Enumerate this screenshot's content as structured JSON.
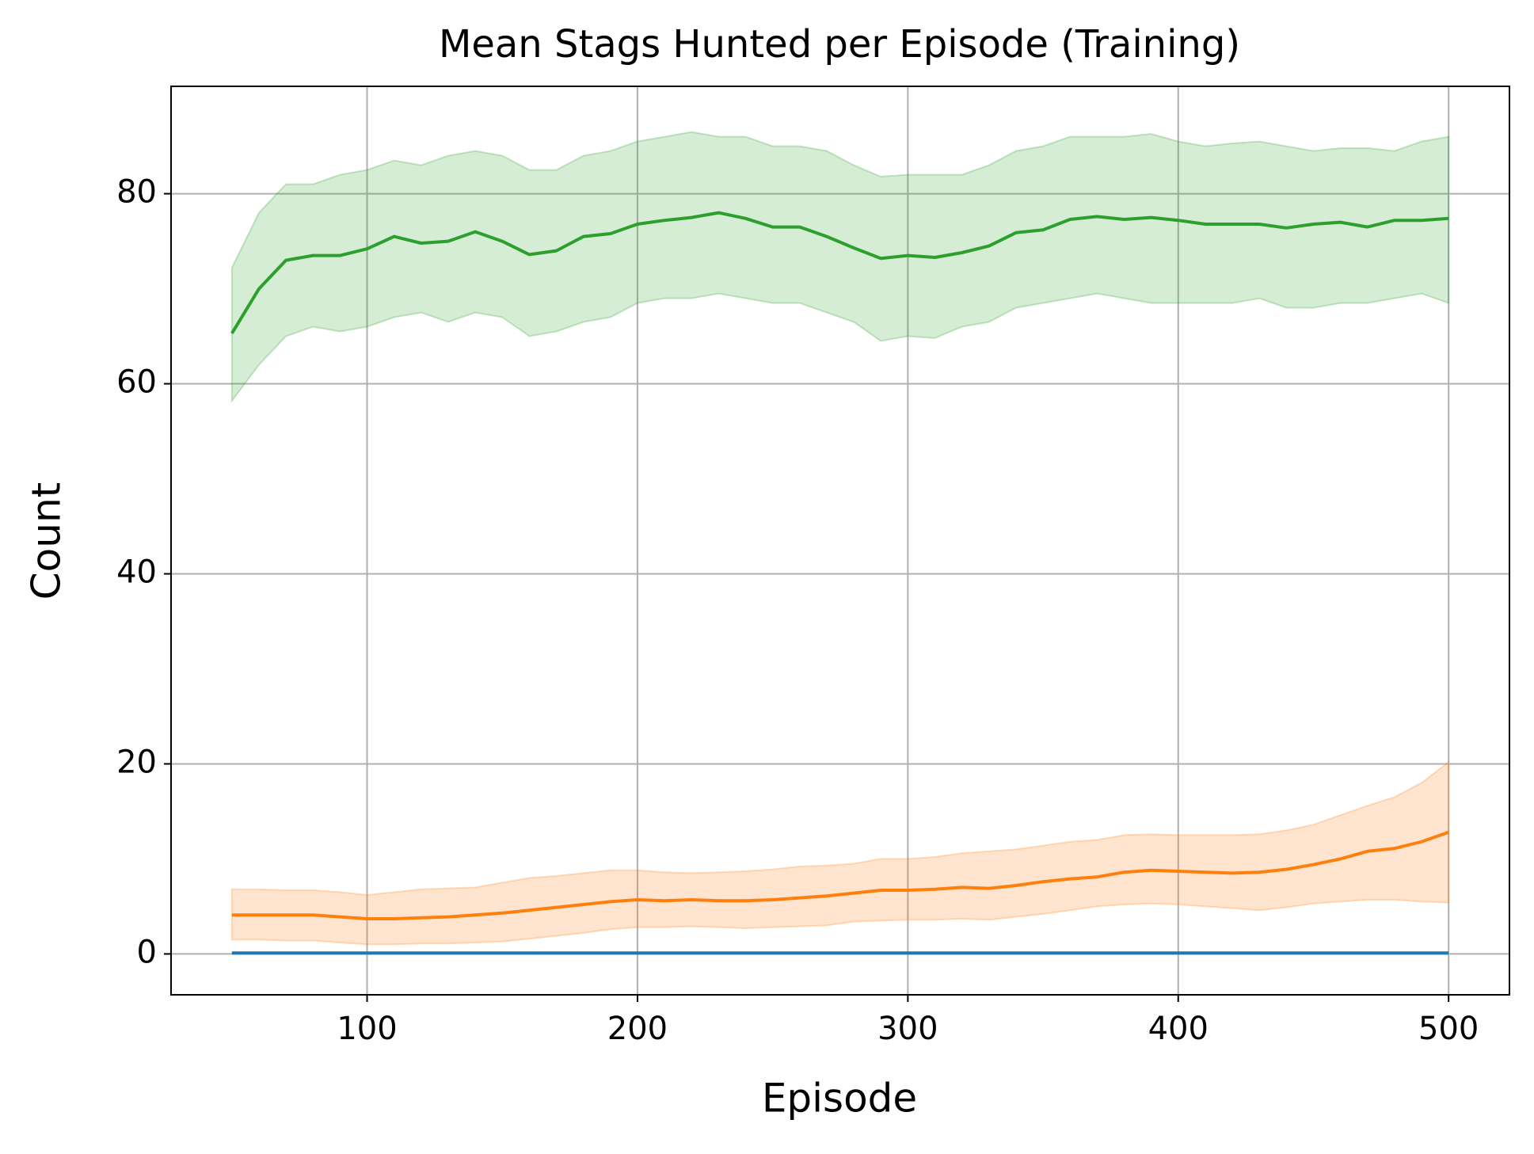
{
  "chart_data": {
    "type": "line",
    "title": "Mean Stags Hunted per Episode (Training)",
    "xlabel": "Episode",
    "ylabel": "Count",
    "x": [
      50,
      60,
      70,
      80,
      90,
      100,
      110,
      120,
      130,
      140,
      150,
      160,
      170,
      180,
      190,
      200,
      210,
      220,
      230,
      240,
      250,
      260,
      270,
      280,
      290,
      300,
      310,
      320,
      330,
      340,
      350,
      360,
      370,
      380,
      390,
      400,
      410,
      420,
      430,
      440,
      450,
      460,
      470,
      480,
      490,
      500
    ],
    "series": [
      {
        "color": "#1f77b4",
        "values": [
          0.1,
          0.1,
          0.1,
          0.1,
          0.1,
          0.1,
          0.1,
          0.1,
          0.1,
          0.1,
          0.1,
          0.1,
          0.1,
          0.1,
          0.1,
          0.1,
          0.1,
          0.1,
          0.1,
          0.1,
          0.1,
          0.1,
          0.1,
          0.1,
          0.1,
          0.1,
          0.1,
          0.1,
          0.1,
          0.1,
          0.1,
          0.1,
          0.1,
          0.1,
          0.1,
          0.1,
          0.1,
          0.1,
          0.1,
          0.1,
          0.1,
          0.1,
          0.1,
          0.1,
          0.1,
          0.1
        ]
      },
      {
        "color": "#ff7f0e",
        "values": [
          4.1,
          4.1,
          4.1,
          4.1,
          3.9,
          3.7,
          3.7,
          3.8,
          3.9,
          4.1,
          4.3,
          4.6,
          4.9,
          5.2,
          5.5,
          5.7,
          5.6,
          5.7,
          5.6,
          5.6,
          5.7,
          5.9,
          6.1,
          6.4,
          6.7,
          6.7,
          6.8,
          7.0,
          6.9,
          7.2,
          7.6,
          7.9,
          8.1,
          8.6,
          8.8,
          8.7,
          8.6,
          8.5,
          8.6,
          8.9,
          9.4,
          10,
          10.8,
          11.1,
          11.8,
          12.8
        ],
        "upper": [
          6.8,
          6.8,
          6.7,
          6.7,
          6.5,
          6.2,
          6.5,
          6.8,
          6.9,
          7.0,
          7.5,
          8,
          8.2,
          8.5,
          8.8,
          8.8,
          8.6,
          8.5,
          8.6,
          8.7,
          8.9,
          9.2,
          9.3,
          9.5,
          10,
          10,
          10.2,
          10.6,
          10.8,
          11,
          11.4,
          11.8,
          12,
          12.5,
          12.6,
          12.5,
          12.5,
          12.5,
          12.6,
          13,
          13.6,
          14.6,
          15.6,
          16.5,
          18,
          20.2
        ],
        "lower": [
          1.5,
          1.5,
          1.4,
          1.4,
          1.2,
          1.0,
          1.0,
          1.1,
          1.1,
          1.2,
          1.3,
          1.6,
          1.9,
          2.2,
          2.6,
          2.8,
          2.8,
          2.9,
          2.8,
          2.7,
          2.8,
          2.9,
          3.0,
          3.4,
          3.5,
          3.6,
          3.6,
          3.7,
          3.6,
          3.9,
          4.2,
          4.6,
          5,
          5.2,
          5.3,
          5.2,
          5,
          4.8,
          4.6,
          4.9,
          5.3,
          5.5,
          5.7,
          5.7,
          5.5,
          5.4
        ]
      },
      {
        "color": "#2ca02c",
        "values": [
          65.3,
          70,
          73,
          73.5,
          73.5,
          74.2,
          75.5,
          74.8,
          75,
          76,
          75,
          73.6,
          74,
          75.5,
          75.8,
          76.8,
          77.2,
          77.5,
          78,
          77.4,
          76.5,
          76.5,
          75.5,
          74.3,
          73.2,
          73.5,
          73.3,
          73.8,
          74.5,
          75.9,
          76.2,
          77.3,
          77.6,
          77.3,
          77.5,
          77.2,
          76.8,
          76.8,
          76.8,
          76.4,
          76.8,
          77,
          76.5,
          77.2,
          77.2,
          77.4
        ],
        "upper": [
          72.2,
          78,
          81,
          81,
          82,
          82.5,
          83.5,
          83,
          84,
          84.5,
          84,
          82.5,
          82.5,
          84,
          84.5,
          85.5,
          86,
          86.5,
          86,
          86,
          85,
          85,
          84.5,
          83,
          81.8,
          82,
          82,
          82,
          83,
          84.5,
          85,
          86,
          86,
          86,
          86.3,
          85.5,
          85,
          85.3,
          85.5,
          85,
          84.5,
          84.8,
          84.8,
          84.5,
          85.5,
          86
        ],
        "lower": [
          58.2,
          62,
          65,
          66,
          65.5,
          66,
          67,
          67.5,
          66.5,
          67.5,
          67,
          65,
          65.5,
          66.5,
          67,
          68.5,
          69,
          69,
          69.5,
          69,
          68.5,
          68.5,
          67.5,
          66.5,
          64.5,
          65,
          64.8,
          66,
          66.5,
          68,
          68.5,
          69,
          69.5,
          69,
          68.5,
          68.5,
          68.5,
          68.5,
          69,
          68,
          68,
          68.5,
          68.5,
          69,
          69.5,
          68.5
        ]
      }
    ],
    "xlim": [
      27.5,
      522.5
    ],
    "xticks": [
      100,
      200,
      300,
      400,
      500
    ],
    "ylim": [
      -4.3,
      91.3
    ],
    "yticks": [
      0,
      20,
      40,
      60,
      80
    ],
    "grid": true
  }
}
